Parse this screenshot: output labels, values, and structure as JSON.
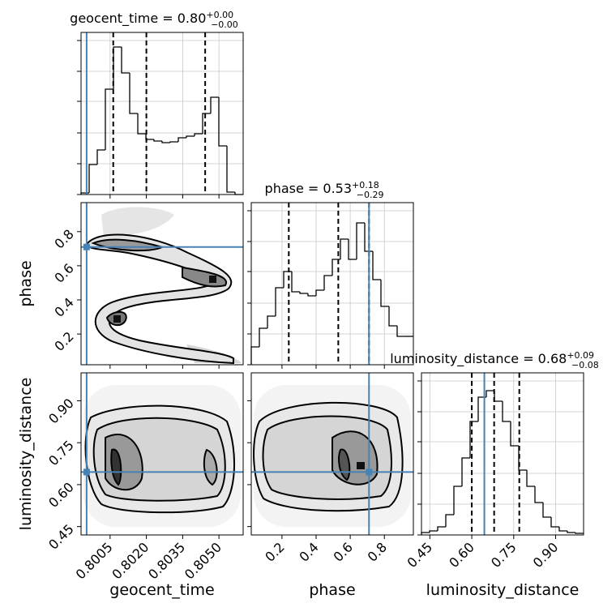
{
  "chart_data": {
    "type": "corner",
    "truth_color": "#4682b4",
    "hist_color": "#000000",
    "grid": true,
    "parameters": [
      {
        "name": "geocent_time",
        "title": "geocent_time = 0.80",
        "title_plus": "+0.00",
        "title_minus": "−0.00",
        "lim": [
          0.7993,
          0.806
        ],
        "ticks": [
          0.8005,
          0.802,
          0.8035,
          0.805
        ],
        "tick_labels": [
          "0.8005",
          "0.8020",
          "0.8035",
          "0.8050"
        ],
        "truth": 0.79953,
        "quantiles": [
          0.80063,
          0.802,
          0.80443
        ],
        "bins": [
          0.7993,
          0.799635,
          0.79997,
          0.800305,
          0.80064,
          0.800975,
          0.80131,
          0.801645,
          0.80198,
          0.802315,
          0.80265,
          0.802985,
          0.80332,
          0.803655,
          0.80399,
          0.804325,
          0.80466,
          0.804995,
          0.80533,
          0.805665,
          0.806
        ],
        "values": [
          2,
          37,
          55,
          130,
          182,
          150,
          100,
          75,
          68,
          66,
          64,
          65,
          70,
          72,
          75,
          100,
          120,
          60,
          3,
          0
        ],
        "hist_ylim": [
          0,
          200
        ],
        "hist_yticks": [
          0,
          38,
          76,
          115,
          152,
          190
        ]
      },
      {
        "name": "phase",
        "title": "phase = 0.53",
        "title_plus": "+0.18",
        "title_minus": "−0.29",
        "lim": [
          0.02,
          0.97
        ],
        "ticks": [
          0.2,
          0.4,
          0.6,
          0.8
        ],
        "tick_labels": [
          "0.2",
          "0.4",
          "0.6",
          "0.8"
        ],
        "truth": 0.71,
        "quantiles": [
          0.24,
          0.53,
          0.71
        ],
        "bins": [
          0.02,
          0.0675,
          0.115,
          0.1625,
          0.21,
          0.2575,
          0.305,
          0.3525,
          0.4,
          0.4475,
          0.495,
          0.5425,
          0.59,
          0.6375,
          0.685,
          0.7325,
          0.78,
          0.8275,
          0.875,
          0.9225,
          0.97
        ],
        "values": [
          22,
          45,
          60,
          95,
          115,
          90,
          88,
          85,
          92,
          110,
          130,
          155,
          130,
          175,
          140,
          105,
          72,
          48,
          35,
          35
        ],
        "hist_ylim": [
          0,
          200
        ],
        "hist_yticks": [
          0,
          38,
          76,
          115,
          152,
          190
        ]
      },
      {
        "name": "luminosity_distance",
        "title": "luminosity_distance = 0.68",
        "title_plus": "+0.09",
        "title_minus": "−0.08",
        "lim": [
          0.42,
          1.0
        ],
        "ticks": [
          0.45,
          0.6,
          0.75,
          0.9
        ],
        "tick_labels": [
          "0.45",
          "0.60",
          "0.75",
          "0.90"
        ],
        "truth": 0.645,
        "quantiles": [
          0.6,
          0.68,
          0.77
        ],
        "bins": [
          0.42,
          0.449,
          0.478,
          0.507,
          0.536,
          0.565,
          0.594,
          0.623,
          0.652,
          0.681,
          0.71,
          0.739,
          0.768,
          0.797,
          0.826,
          0.855,
          0.884,
          0.913,
          0.942,
          0.971,
          1.0
        ],
        "values": [
          3,
          5,
          10,
          25,
          60,
          95,
          140,
          170,
          178,
          165,
          140,
          110,
          80,
          60,
          40,
          22,
          10,
          5,
          3,
          2
        ],
        "hist_ylim": [
          0,
          200
        ],
        "hist_yticks": [
          0,
          38,
          76,
          115,
          152,
          190
        ]
      }
    ]
  }
}
